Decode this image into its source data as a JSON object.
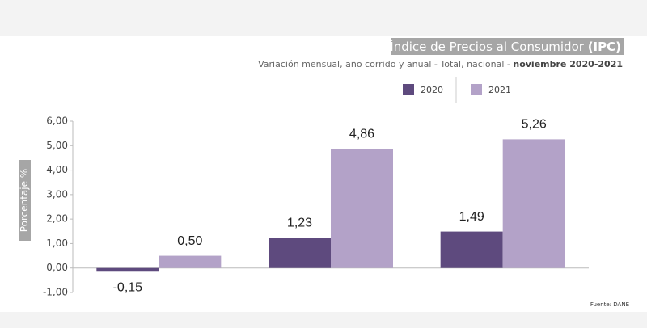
{
  "chart_data": {
    "type": "bar",
    "title": "Índice de Precios al Consumidor ",
    "title_emphasis": "(IPC)",
    "subtitle": "Variación mensual, año corrido y anual  - Total, nacional - ",
    "subtitle_emphasis": "noviembre 2020-2021",
    "y_label": "Porcentaje %",
    "source": "Fuente: DANE",
    "categories": [
      null,
      null,
      null
    ],
    "series": [
      {
        "name": "2020",
        "color": "#5e4a7e",
        "values": [
          -0.15,
          1.23,
          1.49
        ],
        "value_labels": [
          "-0,15",
          "1,23",
          "1,49"
        ]
      },
      {
        "name": "2021",
        "color": "#b3a2c8",
        "values": [
          0.5,
          4.86,
          5.26
        ],
        "value_labels": [
          "0,50",
          "4,86",
          "5,26"
        ]
      }
    ],
    "ylim": [
      -1,
      6
    ],
    "yticks": [
      {
        "value": -1,
        "label": "-1,00"
      },
      {
        "value": 0,
        "label": "0,00"
      },
      {
        "value": 1,
        "label": "1,00"
      },
      {
        "value": 2,
        "label": "2,00"
      },
      {
        "value": 3,
        "label": "3,00"
      },
      {
        "value": 4,
        "label": "4,00"
      },
      {
        "value": 5,
        "label": "5,00"
      },
      {
        "value": 6,
        "label": "6,00"
      }
    ],
    "grid": false
  }
}
